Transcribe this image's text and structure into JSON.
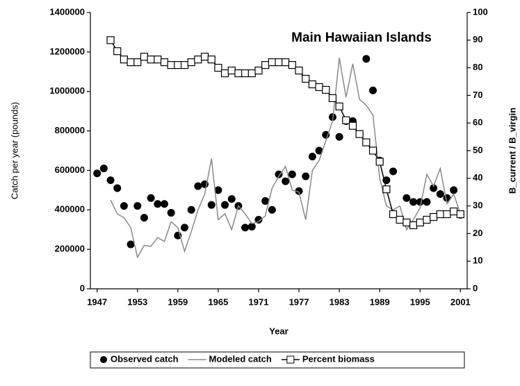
{
  "chart_data": {
    "type": "line",
    "title": "Main Hawaiian Islands",
    "x_label": "Year",
    "y_label": "Catch per year (pounds)",
    "y2_label": "B_current / B_virgin",
    "x": [
      1947,
      1948,
      1949,
      1950,
      1951,
      1952,
      1953,
      1954,
      1955,
      1956,
      1957,
      1958,
      1959,
      1960,
      1961,
      1962,
      1963,
      1964,
      1965,
      1966,
      1967,
      1968,
      1969,
      1970,
      1971,
      1972,
      1973,
      1974,
      1975,
      1976,
      1977,
      1978,
      1979,
      1980,
      1981,
      1982,
      1983,
      1984,
      1985,
      1986,
      1987,
      1988,
      1989,
      1990,
      1991,
      1992,
      1993,
      1994,
      1995,
      1996,
      1997,
      1998,
      1999,
      2000,
      2001
    ],
    "xlim": [
      1946,
      2002
    ],
    "xticks": [
      1947,
      1953,
      1959,
      1965,
      1971,
      1977,
      1983,
      1989,
      1995,
      2001
    ],
    "ylim": [
      0,
      1400000
    ],
    "yticks": [
      0,
      200000,
      400000,
      600000,
      800000,
      1000000,
      1200000,
      1400000
    ],
    "y2lim": [
      0,
      100
    ],
    "y2ticks": [
      0,
      10,
      20,
      30,
      40,
      50,
      60,
      70,
      80,
      90,
      100
    ],
    "legend": "bottom",
    "series": [
      {
        "name": "Observed catch",
        "kind": "scatter",
        "color": "#000000",
        "values": [
          585000,
          610000,
          550000,
          510000,
          420000,
          225000,
          420000,
          360000,
          460000,
          430000,
          430000,
          385000,
          270000,
          310000,
          400000,
          520000,
          530000,
          425000,
          500000,
          425000,
          455000,
          420000,
          310000,
          315000,
          350000,
          445000,
          400000,
          580000,
          545000,
          580000,
          495000,
          570000,
          670000,
          700000,
          780000,
          870000,
          770000,
          850000,
          850000,
          785000,
          1165000,
          1005000,
          650000,
          550000,
          595000,
          null,
          460000,
          440000,
          440000,
          440000,
          510000,
          480000,
          460000,
          500000,
          375000
        ]
      },
      {
        "name": "Modeled catch",
        "kind": "line",
        "color": "#888888",
        "values": [
          null,
          null,
          450000,
          380000,
          360000,
          310000,
          160000,
          220000,
          215000,
          260000,
          240000,
          340000,
          310000,
          190000,
          290000,
          400000,
          480000,
          660000,
          350000,
          380000,
          300000,
          420000,
          380000,
          330000,
          340000,
          370000,
          510000,
          570000,
          620000,
          500000,
          490000,
          350000,
          600000,
          650000,
          750000,
          850000,
          1170000,
          970000,
          1140000,
          960000,
          930000,
          880000,
          560000,
          420000,
          400000,
          420000,
          300000,
          350000,
          410000,
          580000,
          520000,
          610000,
          430000,
          480000,
          380000
        ]
      },
      {
        "name": "Percent biomass",
        "kind": "line-square",
        "color": "#000000",
        "axis": "y2",
        "values": [
          null,
          null,
          90,
          86,
          83,
          82,
          82,
          84,
          83,
          83,
          82,
          81,
          81,
          81,
          82,
          83,
          84,
          83,
          80,
          78,
          79,
          78,
          78,
          78,
          79,
          81,
          82,
          82,
          82,
          81,
          79,
          76,
          74,
          73,
          72,
          69,
          66,
          61,
          59,
          56,
          53,
          50,
          46,
          36,
          27,
          25,
          24,
          23,
          24,
          25,
          26,
          27,
          27,
          28,
          27
        ]
      }
    ]
  }
}
